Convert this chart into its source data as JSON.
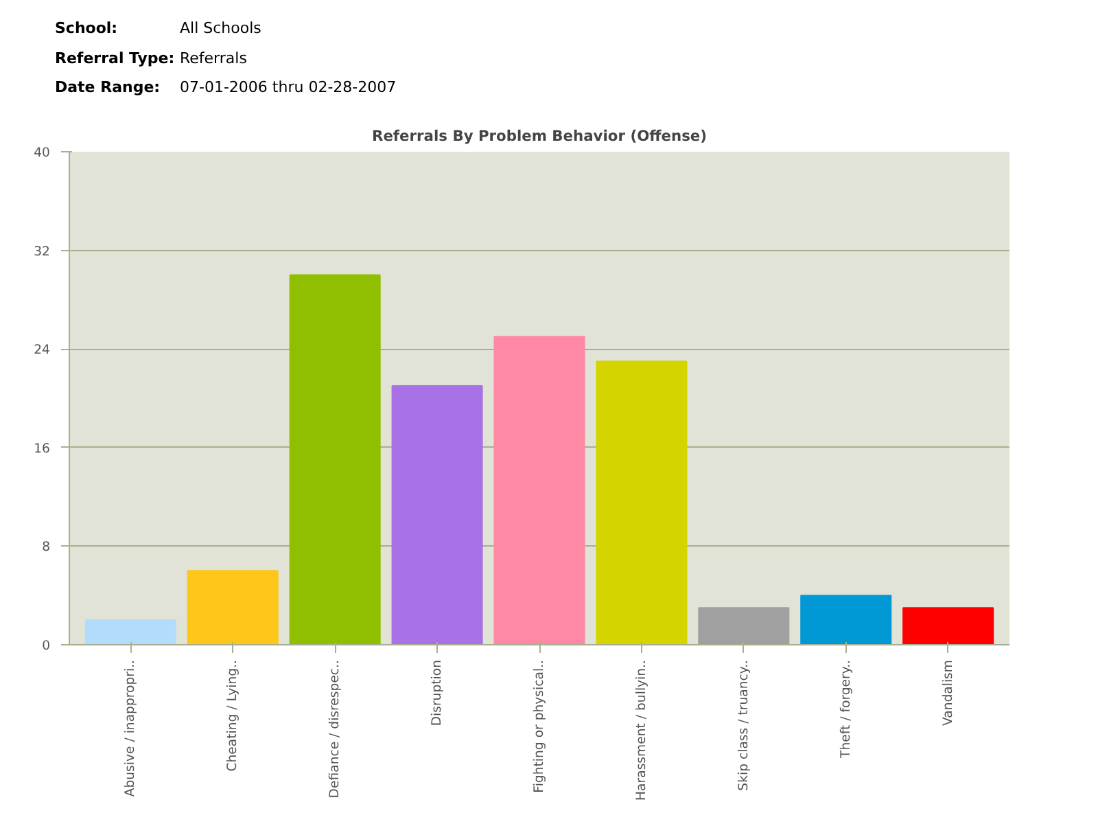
{
  "chart_data": {
    "type": "bar",
    "title": "Referrals By Problem Behavior (Offense)",
    "annotations": [
      "School:",
      "All Schools",
      "Referral Type:",
      "Referrals",
      "Date Range:",
      "07-01-2006 thru 02-28-2007"
    ],
    "categories": [
      "Abusive / inappropri..",
      "Cheating / Lying..",
      "Defiance / disrespec..",
      "Disruption",
      "Fighting or physical..",
      "Harassment / bullyin..",
      "Skip class / truancy..",
      "Theft / forgery..",
      "Vandalism"
    ],
    "values": [
      2,
      6,
      30,
      21,
      25,
      23,
      3,
      4,
      3
    ],
    "colors": [
      "#b3dcfc",
      "#ffc61a",
      "#8fbf00",
      "#a971e6",
      "#ff88a4",
      "#d4d400",
      "#a0a0a0",
      "#0099d6",
      "#ff0000"
    ],
    "ylim": [
      0,
      40
    ],
    "yticks": [
      0,
      8,
      16,
      24,
      32,
      40
    ],
    "grid": "y"
  }
}
